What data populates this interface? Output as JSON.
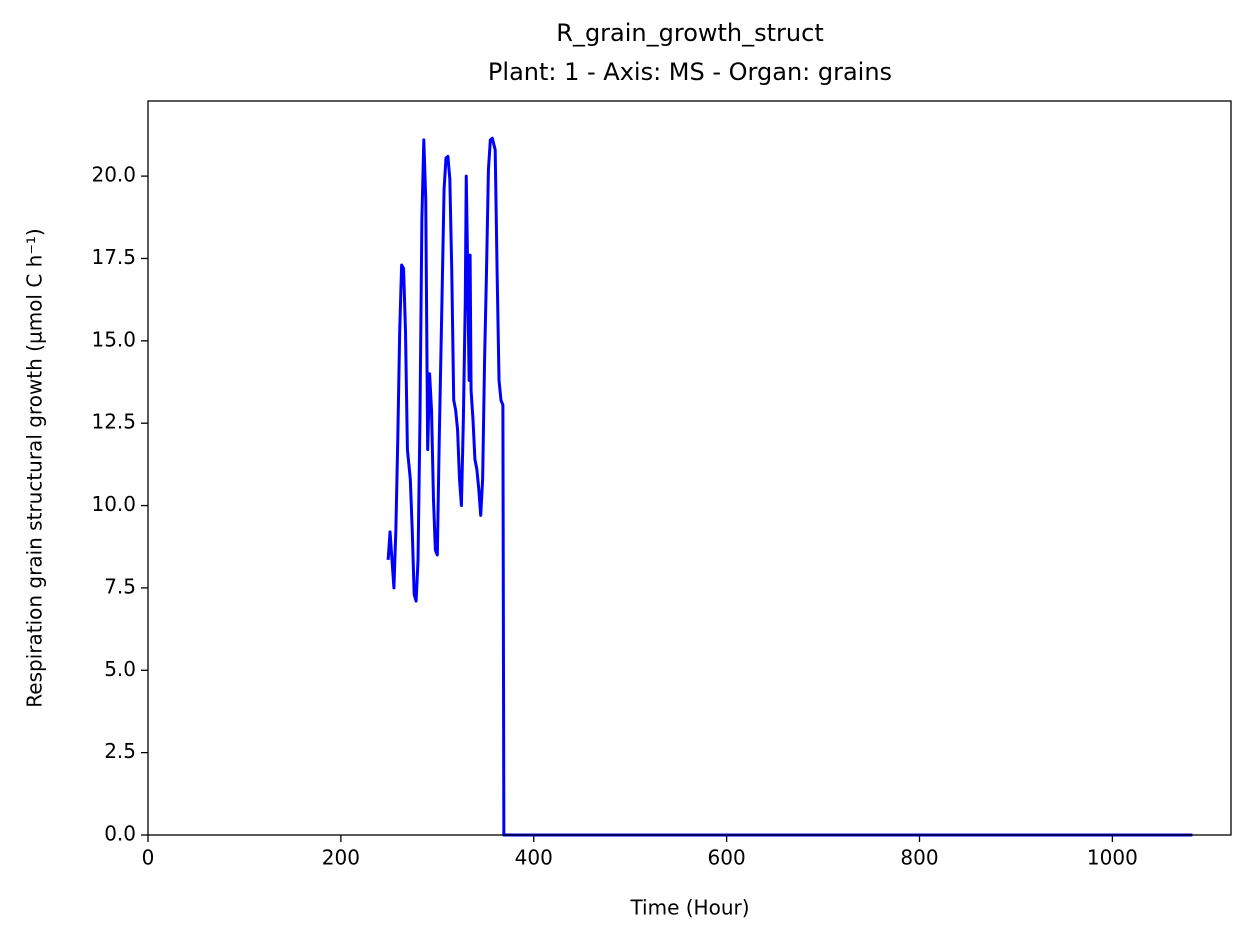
{
  "chart_data": {
    "type": "line",
    "title": "R_grain_growth_struct",
    "subtitle": "Plant: 1 - Axis: MS - Organ: grains",
    "x_label": "Time (Hour)",
    "y_label": "Respiration grain structural growth (µmol C h⁻¹)",
    "x": [
      249,
      251,
      253,
      255,
      257,
      259,
      261,
      263,
      265,
      267,
      269,
      272,
      274,
      276,
      278,
      280,
      282,
      284,
      286,
      288,
      290,
      292,
      294,
      296,
      298,
      300,
      302,
      305,
      307,
      309,
      311,
      313,
      315,
      317,
      319,
      321,
      323,
      325,
      327,
      329,
      330,
      331,
      333,
      334,
      335,
      337,
      339,
      341,
      343,
      345,
      347,
      349,
      351,
      353,
      355,
      357,
      360,
      362,
      364,
      366,
      368,
      369,
      1083
    ],
    "series": [
      {
        "name": "R_grain_growth_struct",
        "color": "#0000ff",
        "values": [
          8.35,
          9.2,
          8.35,
          7.5,
          9.25,
          12.0,
          15.3,
          17.3,
          17.2,
          15.3,
          11.7,
          10.8,
          9.25,
          7.3,
          7.1,
          8.35,
          12.6,
          18.7,
          21.1,
          19.3,
          11.7,
          14.0,
          12.9,
          10.2,
          8.65,
          8.5,
          12.0,
          16.5,
          19.6,
          20.55,
          20.6,
          19.9,
          17.1,
          13.2,
          12.9,
          12.3,
          10.8,
          10.0,
          12.6,
          16.2,
          20.0,
          18.1,
          13.8,
          17.6,
          13.5,
          12.6,
          11.4,
          11.1,
          10.5,
          9.7,
          10.8,
          14.4,
          17.1,
          20.2,
          21.1,
          21.15,
          20.8,
          17.1,
          13.8,
          13.2,
          13.05,
          0,
          0
        ]
      }
    ],
    "xlim": [
      0,
      1123
    ],
    "ylim": [
      0,
      22.28
    ],
    "xticks": [
      0,
      200,
      400,
      600,
      800,
      1000
    ],
    "yticks": [
      {
        "value": 0,
        "label": "0.0"
      },
      2.5,
      {
        "value": 5,
        "label": "5.0"
      },
      7.5,
      {
        "value": 10,
        "label": "10.0"
      },
      12.5,
      {
        "value": 15,
        "label": "15.0"
      },
      17.5,
      {
        "value": 20,
        "label": "20.0"
      }
    ],
    "grid": false
  }
}
